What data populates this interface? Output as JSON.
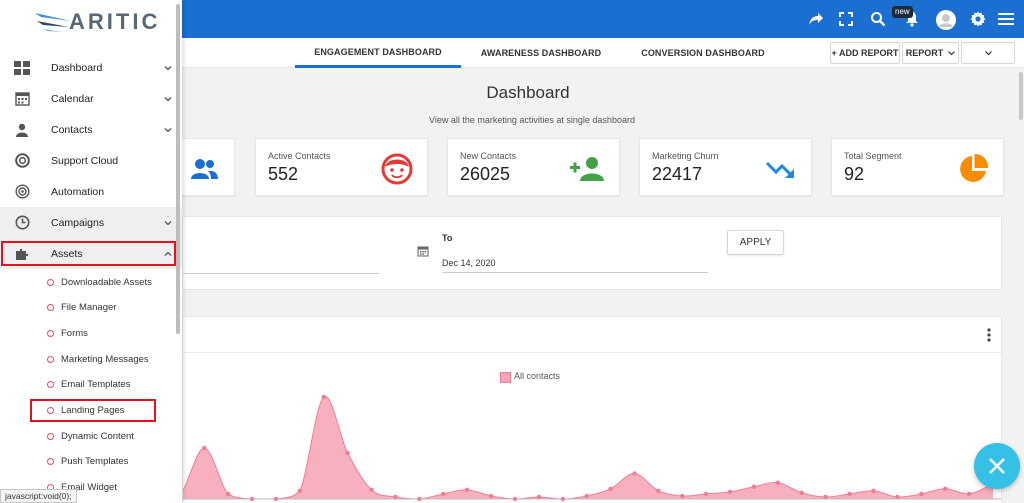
{
  "header": {
    "new_badge": "new",
    "icons": [
      "share-icon",
      "fullscreen-icon",
      "search-icon",
      "bell-icon",
      "avatar",
      "gear-icon",
      "hamburger-menu-icon"
    ]
  },
  "brand": {
    "logo_text": "ARITIC"
  },
  "tabs": [
    {
      "label": "ENGAGEMENT DASHBOARD",
      "active": true
    },
    {
      "label": "AWARENESS DASHBOARD",
      "active": false
    },
    {
      "label": "CONVERSION DASHBOARD",
      "active": false
    }
  ],
  "toolbar": {
    "add_report_label": "+ ADD REPORT",
    "report_label": "REPORT"
  },
  "page": {
    "title": "Dashboard",
    "subtitle": "View all the marketing activities at single dashboard"
  },
  "stats": [
    {
      "label": "Active Contacts",
      "value": "552"
    },
    {
      "label": "New Contacts",
      "value": "26025"
    },
    {
      "label": "Marketing Churn",
      "value": "22417"
    },
    {
      "label": "Total Segment",
      "value": "92"
    }
  ],
  "filter": {
    "to_label": "To",
    "to_value": "Dec 14, 2020",
    "apply_label": "APPLY"
  },
  "sidebar": {
    "items": [
      {
        "label": "Dashboard",
        "icon": "grid-icon",
        "chevron": true
      },
      {
        "label": "Calendar",
        "icon": "calendar-icon",
        "chevron": true
      },
      {
        "label": "Contacts",
        "icon": "user-icon",
        "chevron": true
      },
      {
        "label": "Support Cloud",
        "icon": "lifebuoy-icon",
        "chevron": false
      },
      {
        "label": "Automation",
        "icon": "target-icon",
        "chevron": false
      },
      {
        "label": "Campaigns",
        "icon": "clock-icon",
        "chevron": true
      },
      {
        "label": "Assets",
        "icon": "puzzle-icon",
        "chevron": true
      }
    ],
    "sub_items": [
      "Downloadable Assets",
      "File Manager",
      "Forms",
      "Marketing Messages",
      "Email Templates",
      "Landing Pages",
      "Dynamic Content",
      "Push Templates",
      "Email Widget"
    ]
  },
  "status_bar": {
    "text": "javascript:void(0);"
  },
  "colors": {
    "primary": "#1a6fd0",
    "series_fill": "#f7a7b8",
    "series_line": "#f07d97",
    "fab": "#35c0e6"
  },
  "chart_data": {
    "type": "area",
    "title": "",
    "series": [
      {
        "name": "All contacts",
        "values": [
          6,
          4,
          2,
          8,
          8,
          6,
          2,
          5,
          50,
          5,
          0,
          0,
          8,
          100,
          45,
          9,
          2,
          0,
          5,
          9,
          3,
          0,
          2,
          0,
          3,
          10,
          25,
          8,
          3,
          5,
          7,
          12,
          16,
          6,
          2,
          5,
          8,
          2,
          5,
          10,
          5,
          15
        ]
      }
    ],
    "grid": false,
    "legend": "top-center"
  }
}
